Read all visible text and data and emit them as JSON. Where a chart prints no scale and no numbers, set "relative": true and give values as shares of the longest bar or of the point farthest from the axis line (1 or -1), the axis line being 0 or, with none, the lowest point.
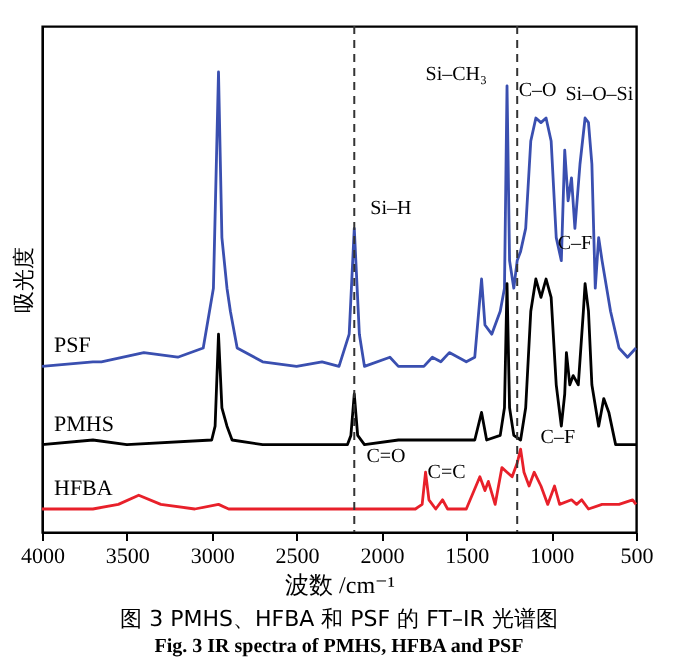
{
  "chart_data": {
    "type": "line",
    "title": "图 3 PMHS、HFBA 和 PSF 的 FT–IR 光谱图",
    "subtitle": "Fig. 3 IR spectra of PMHS, HFBA and PSF",
    "xlabel": "波数 /cm⁻¹",
    "ylabel": "吸光度",
    "relative": true,
    "xlim": [
      4000,
      500
    ],
    "xticks": [
      4000,
      3500,
      3000,
      2500,
      2000,
      1500,
      1000,
      500
    ],
    "tick_labels": "x",
    "grid": false,
    "legend": false,
    "line_style": "solid",
    "series": [
      {
        "name": "PSF",
        "color": "#3a4fb0",
        "x": [
          4000,
          3700,
          3650,
          3400,
          3200,
          3050,
          2990,
          2960,
          2940,
          2910,
          2890,
          2850,
          2700,
          2500,
          2350,
          2250,
          2190,
          2160,
          2130,
          2100,
          1950,
          1900,
          1750,
          1700,
          1650,
          1600,
          1500,
          1450,
          1410,
          1390,
          1350,
          1300,
          1275,
          1260,
          1245,
          1220,
          1200,
          1180,
          1150,
          1120,
          1090,
          1060,
          1030,
          1000,
          970,
          940,
          920,
          900,
          880,
          860,
          830,
          800,
          780,
          760,
          740,
          720,
          700,
          650,
          600,
          550,
          500
        ],
        "values": [
          0.36,
          0.37,
          0.37,
          0.39,
          0.38,
          0.4,
          0.53,
          1,
          0.64,
          0.53,
          0.48,
          0.4,
          0.37,
          0.36,
          0.37,
          0.36,
          0.43,
          0.66,
          0.43,
          0.36,
          0.38,
          0.36,
          0.36,
          0.38,
          0.37,
          0.39,
          0.37,
          0.38,
          0.55,
          0.45,
          0.43,
          0.48,
          0.53,
          0.97,
          0.59,
          0.53,
          0.59,
          0.61,
          0.66,
          0.85,
          0.9,
          0.89,
          0.9,
          0.85,
          0.64,
          0.59,
          0.83,
          0.72,
          0.77,
          0.66,
          0.8,
          0.9,
          0.89,
          0.8,
          0.53,
          0.64,
          0.59,
          0.48,
          0.4,
          0.38,
          0.4
        ]
      },
      {
        "name": "PMHS",
        "color": "#000000",
        "x": [
          4000,
          3700,
          3500,
          3000,
          2980,
          2960,
          2940,
          2910,
          2880,
          2700,
          2200,
          2180,
          2160,
          2140,
          2100,
          1900,
          1600,
          1450,
          1410,
          1380,
          1300,
          1275,
          1260,
          1245,
          1220,
          1180,
          1150,
          1120,
          1090,
          1060,
          1030,
          1000,
          970,
          940,
          920,
          910,
          890,
          870,
          840,
          810,
          800,
          780,
          760,
          720,
          690,
          660,
          620,
          500
        ],
        "values": [
          0.19,
          0.2,
          0.19,
          0.2,
          0.23,
          0.43,
          0.27,
          0.23,
          0.2,
          0.19,
          0.19,
          0.21,
          0.3,
          0.21,
          0.19,
          0.2,
          0.2,
          0.2,
          0.26,
          0.2,
          0.21,
          0.27,
          0.54,
          0.27,
          0.21,
          0.2,
          0.27,
          0.48,
          0.55,
          0.51,
          0.55,
          0.51,
          0.32,
          0.23,
          0.3,
          0.39,
          0.32,
          0.34,
          0.32,
          0.48,
          0.54,
          0.48,
          0.32,
          0.23,
          0.29,
          0.26,
          0.19,
          0.19
        ]
      },
      {
        "name": "HFBA",
        "color": "#e8202a",
        "x": [
          4000,
          3700,
          3550,
          3430,
          3300,
          3100,
          2960,
          2900,
          2800,
          1800,
          1760,
          1740,
          1720,
          1680,
          1640,
          1610,
          1500,
          1420,
          1390,
          1370,
          1330,
          1290,
          1260,
          1230,
          1200,
          1180,
          1160,
          1130,
          1100,
          1060,
          1020,
          980,
          950,
          880,
          850,
          820,
          780,
          700,
          600,
          520,
          500
        ],
        "values": [
          0.05,
          0.05,
          0.06,
          0.08,
          0.06,
          0.05,
          0.06,
          0.05,
          0.05,
          0.05,
          0.06,
          0.13,
          0.07,
          0.05,
          0.07,
          0.05,
          0.05,
          0.12,
          0.09,
          0.11,
          0.06,
          0.14,
          0.13,
          0.12,
          0.15,
          0.18,
          0.13,
          0.1,
          0.13,
          0.1,
          0.06,
          0.1,
          0.06,
          0.07,
          0.06,
          0.07,
          0.05,
          0.06,
          0.06,
          0.07,
          0.06
        ]
      }
    ],
    "ref_lines": [
      {
        "axis": "x",
        "value": 2160,
        "color": "#333333",
        "line_style": "dashed"
      },
      {
        "axis": "x",
        "value": 1200,
        "color": "#333333",
        "line_style": "dashed"
      }
    ],
    "annotations": [
      {
        "text": "Si–CH₃",
        "x": 1260,
        "y": 0.97
      },
      {
        "text": "C–O",
        "x": 1080,
        "y": 0.9
      },
      {
        "text": "Si–O–Si",
        "x": 1010,
        "y": 0.9
      },
      {
        "text": "Si–H",
        "x": 2160,
        "y": 0.66
      },
      {
        "text": "C–F",
        "x": 1150,
        "y": 0.62
      },
      {
        "text": "C=O",
        "x": 1740,
        "y": 0.13
      },
      {
        "text": "C=C",
        "x": 1640,
        "y": 0.07
      },
      {
        "text": "C–F",
        "x": 1180,
        "y": 0.18
      }
    ]
  }
}
